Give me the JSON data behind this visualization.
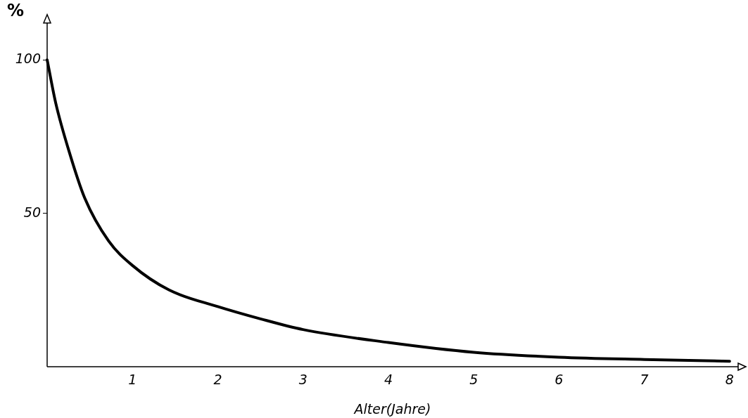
{
  "chart_data": {
    "type": "line",
    "ylabel": "%",
    "xlabel": "Alter(Jahre)",
    "x": [
      0,
      0.1,
      0.27,
      0.44,
      0.72,
      1.0,
      1.43,
      2.0,
      2.5,
      3,
      4,
      5,
      6,
      7,
      8
    ],
    "series": [
      {
        "color": "#000000",
        "values": [
          100,
          86,
          69,
          55,
          41,
          33,
          25,
          19.6,
          15.6,
          12.1,
          7.9,
          4.7,
          3.1,
          2.35,
          1.8
        ]
      }
    ],
    "xlim": [
      0,
      8.1
    ],
    "ylim": [
      0,
      112
    ],
    "xticks": [
      1,
      2,
      3,
      4,
      5,
      6,
      7,
      8
    ],
    "yticks": [
      50,
      100
    ],
    "grid": false,
    "legend": false,
    "marker": "none",
    "line_style": "solid"
  }
}
